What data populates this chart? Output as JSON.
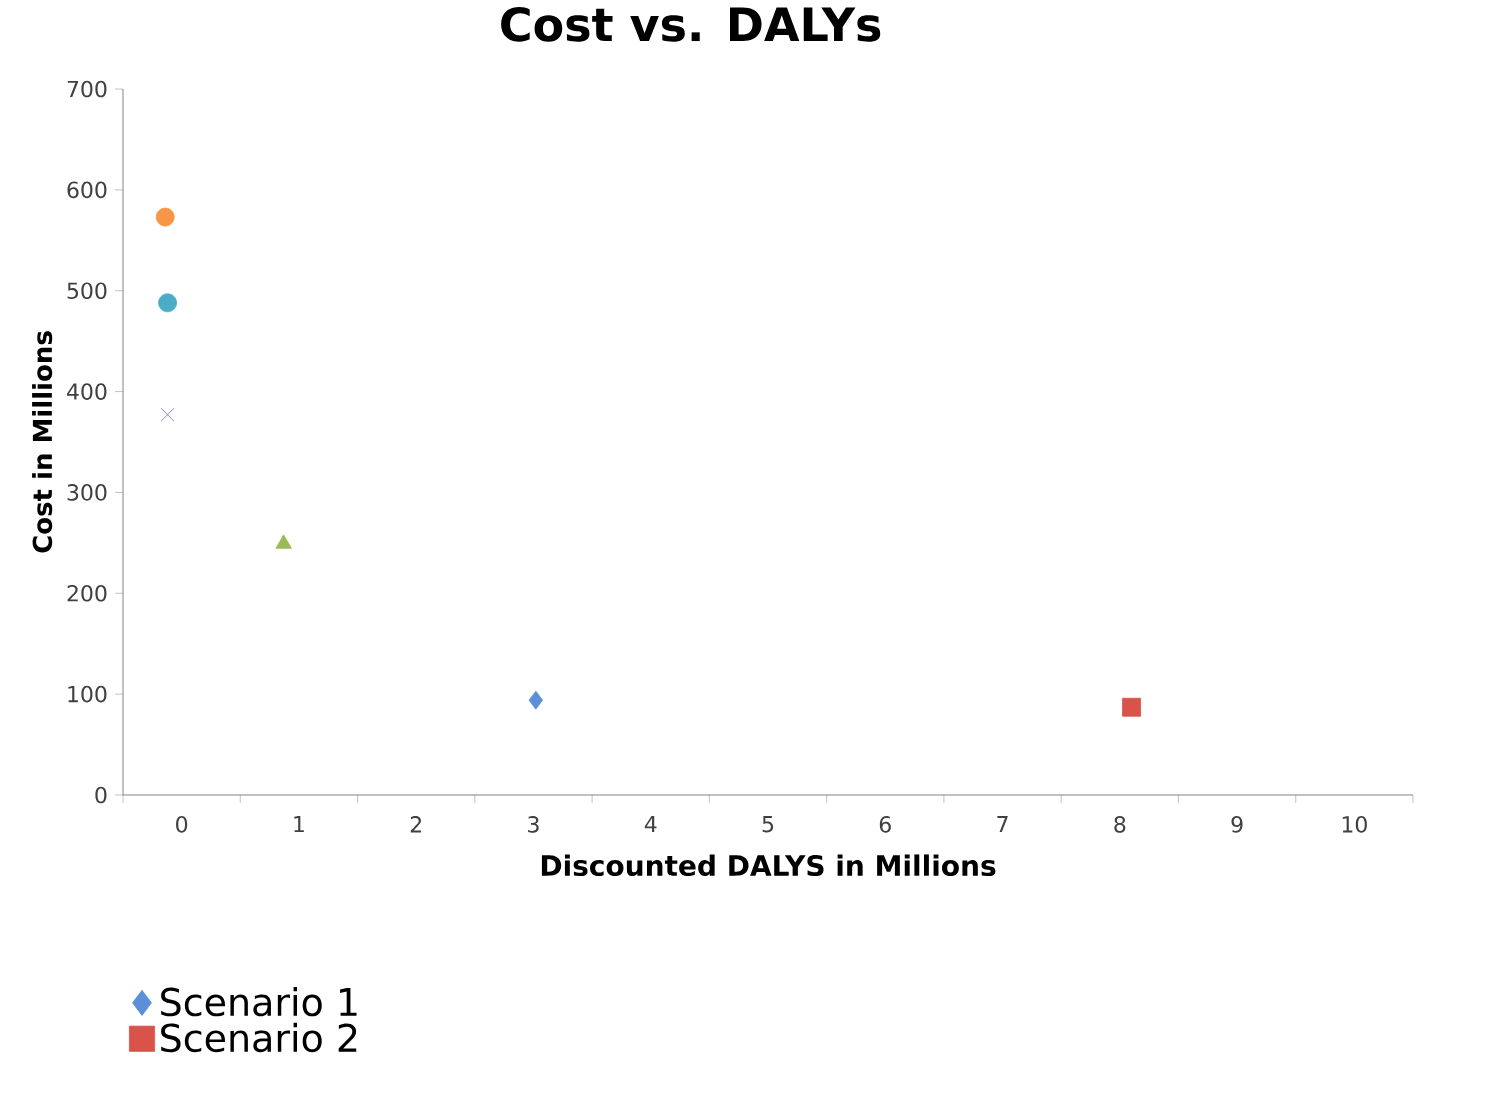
{
  "chart_data": {
    "type": "scatter",
    "title": "Cost vs. DALYs",
    "xlabel": "Discounted DALYS in Millions",
    "ylabel": "Cost in Millions",
    "xlim": [
      -0.5,
      10.5
    ],
    "ylim": [
      0,
      700
    ],
    "xticks": [
      {
        "value": -0.5,
        "label": null
      },
      0,
      {
        "value": 0.5,
        "label": null
      },
      1,
      {
        "value": 1.5,
        "label": null
      },
      2,
      {
        "value": 2.5,
        "label": null
      },
      3,
      {
        "value": 3.5,
        "label": null
      },
      4,
      {
        "value": 4.5,
        "label": null
      },
      5,
      {
        "value": 5.5,
        "label": null
      },
      6,
      {
        "value": 6.5,
        "label": null
      },
      7,
      {
        "value": 7.5,
        "label": null
      },
      8,
      {
        "value": 8.5,
        "label": null
      },
      9,
      {
        "value": 9.5,
        "label": null
      },
      10,
      {
        "value": 10.5,
        "label": null
      }
    ],
    "yticks": [
      0,
      100,
      200,
      300,
      400,
      500,
      600,
      700
    ],
    "legend": "bottom left",
    "grid": false,
    "series": [
      {
        "name": "Scenario 1",
        "color": "#5b8fd9",
        "marker": "diamond",
        "x": [
          3.02
        ],
        "values": [
          94
        ]
      },
      {
        "name": "Scenario 2",
        "color": "#d9534a",
        "marker": "square",
        "x": [
          8.1
        ],
        "values": [
          87
        ]
      },
      {
        "color": "#9bbb59",
        "marker": "triangle",
        "x": [
          0.87
        ],
        "values": [
          249
        ]
      },
      {
        "color": "#8064a2",
        "marker": "cross",
        "x": [
          -0.12
        ],
        "values": [
          377
        ]
      },
      {
        "color": "#4bacc6",
        "marker": "circle",
        "x": [
          -0.12
        ],
        "values": [
          488
        ]
      },
      {
        "color": "#f79646",
        "marker": "circle",
        "x": [
          -0.14
        ],
        "values": [
          573
        ]
      }
    ]
  }
}
